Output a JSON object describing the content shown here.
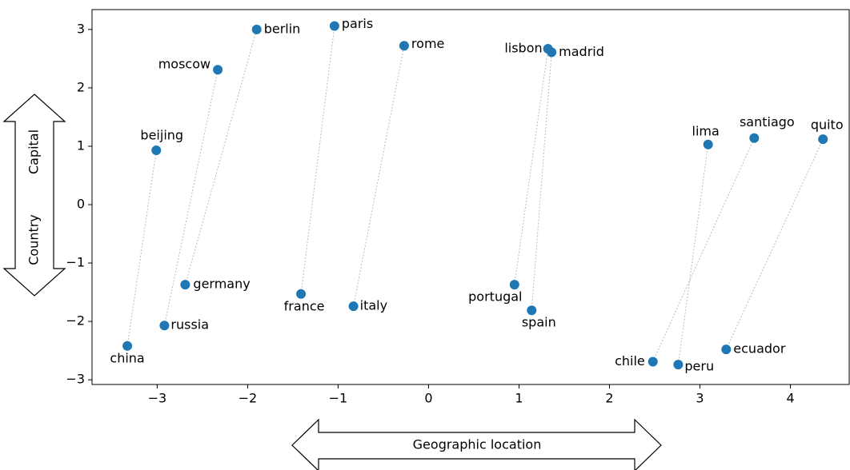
{
  "chart_data": {
    "type": "scatter",
    "color": "#1f77b4",
    "countries": {
      "labels": [
        "china",
        "russia",
        "germany",
        "france",
        "italy",
        "portugal",
        "spain",
        "chile",
        "peru",
        "ecuador"
      ],
      "x": [
        -3.33,
        -2.92,
        -2.69,
        -1.41,
        -0.83,
        0.95,
        1.14,
        2.48,
        2.76,
        3.29
      ],
      "values": [
        -2.42,
        -2.07,
        -1.37,
        -1.53,
        -1.74,
        -1.37,
        -1.81,
        -2.69,
        -2.74,
        -2.48
      ]
    },
    "capitals": {
      "labels": [
        "beijing",
        "moscow",
        "berlin",
        "paris",
        "rome",
        "lisbon",
        "madrid",
        "santiago",
        "lima",
        "quito"
      ],
      "x": [
        -3.01,
        -2.33,
        -1.9,
        -1.04,
        -0.27,
        1.32,
        1.36,
        3.6,
        3.09,
        4.36
      ],
      "values": [
        0.93,
        2.31,
        3.0,
        3.06,
        2.72,
        2.67,
        2.61,
        1.14,
        1.03,
        1.12
      ]
    },
    "xlim": [
      -3.72,
      4.65
    ],
    "ylim": [
      -3.08,
      3.34
    ],
    "xticks": [
      {
        "value": -3,
        "label": "−3"
      },
      {
        "value": -2,
        "label": "−2"
      },
      {
        "value": -1,
        "label": "−1"
      },
      0,
      1,
      2,
      3,
      4
    ],
    "yticks": [
      {
        "value": -3,
        "label": "−3"
      },
      {
        "value": -2,
        "label": "−2"
      },
      {
        "value": -1,
        "label": "−1"
      },
      0,
      1,
      2,
      3
    ],
    "annotations": {
      "y_arrow_top": "Capital",
      "y_arrow_bottom": "Country",
      "x_arrow": "Geographic location"
    }
  }
}
